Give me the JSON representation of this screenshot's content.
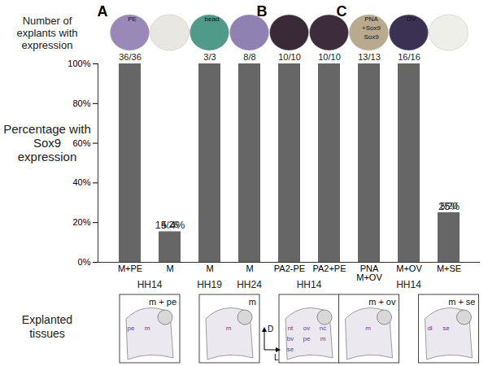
{
  "chart_data": {
    "type": "bar",
    "ylabel": "Percentage with Sox9 expression",
    "count_title": "Number of explants with expression",
    "categories": [
      "M+PE",
      "M",
      "M",
      "M",
      "PA2-PE",
      "PA2+PE",
      "PNA\nM+OV",
      "M+OV",
      "M+SE"
    ],
    "values": [
      100,
      15.4,
      100,
      100,
      100,
      100,
      100,
      100,
      25
    ],
    "value_labels": [
      null,
      "15.4%",
      null,
      null,
      null,
      null,
      null,
      null,
      "25%"
    ],
    "data_labels": true,
    "counts": [
      "36/36",
      "4/26",
      "3/3",
      "8/8",
      "10/10",
      "10/10",
      "13/13",
      "16/16",
      "5/20"
    ],
    "color": "#666666",
    "ylim": [
      0,
      100
    ],
    "yticks": [
      {
        "value": 0,
        "label": "0%"
      },
      {
        "value": 20,
        "label": "20%"
      },
      {
        "value": 40,
        "label": "40%"
      },
      {
        "value": 60,
        "label": "60%"
      },
      {
        "value": 80,
        "label": "80%"
      },
      {
        "value": 100,
        "label": "100%"
      }
    ],
    "stages": [
      {
        "label": "HH14",
        "from": 0,
        "to": 1
      },
      {
        "label": "HH19",
        "from": 2,
        "to": 2
      },
      {
        "label": "HH24",
        "from": 3,
        "to": 3
      },
      {
        "label": "HH14",
        "from": 4,
        "to": 5
      },
      {
        "label": "HH14",
        "from": 6,
        "to": 8
      }
    ],
    "panels": [
      {
        "label": "A",
        "from": 0
      },
      {
        "label": "B",
        "from": 4
      },
      {
        "label": "C",
        "from": 6
      }
    ],
    "photo_labels": [
      [
        "PE"
      ],
      [],
      [
        "bead"
      ],
      [],
      [],
      [],
      [
        "PNA",
        "+Sox9",
        "Sox9"
      ],
      [
        "OV"
      ],
      []
    ],
    "explant_title": "Explanted tissues",
    "explants": [
      {
        "title": "m + pe",
        "from": 0,
        "to": 1,
        "tissues": [
          "pe",
          "m"
        ]
      },
      {
        "title": "m",
        "from": 2,
        "to": 3,
        "tissues": [
          "m"
        ]
      },
      {
        "title": null,
        "from": 4,
        "to": 5,
        "tissues": [
          "nt",
          "ov",
          "nc",
          "bv",
          "pe",
          "m",
          "se"
        ]
      },
      {
        "title": "m + ov",
        "from": 6,
        "to": 6,
        "tissues": [
          "m"
        ]
      },
      {
        "title": "m + se",
        "from": 8,
        "to": 8,
        "tissues": [
          "dl",
          "se"
        ]
      }
    ],
    "orientation_letters": {
      "up": "D",
      "right": "L"
    }
  }
}
